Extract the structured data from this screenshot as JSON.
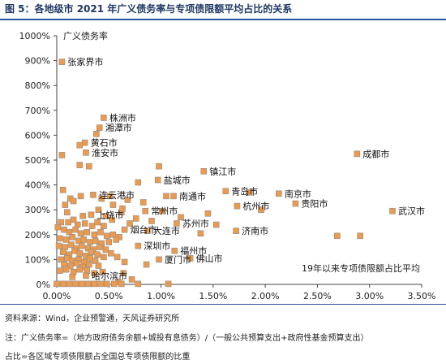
{
  "figure_title": "图 5：各地级市 2021 年广义债务率与专项债限额平均占比的关系",
  "notes": {
    "source": "资料来源：Wind，企业预警通，天风证券研究所",
    "note1": "注：广义债务率=（地方政府债务余额+城投有息债务）/（一般公共预算支出+政府性基金预算支出）",
    "note2": "占比=各区域专项债限额占全国总专项债限额的比重"
  },
  "colors": {
    "marker": "#ed9a4c",
    "marker_stroke": "#8c8c8c",
    "title": "#1f3864",
    "rule": "#2e5597",
    "axis": "#444444"
  },
  "chart_data": {
    "type": "scatter",
    "title": "",
    "ylabel": "广义债务率",
    "xlabel": "19年以来专项债限额占比平均",
    "xlim": [
      0,
      0.035
    ],
    "ylim": [
      0,
      10
    ],
    "x_ticks": [
      "0.00%",
      "0.50%",
      "1.00%",
      "1.50%",
      "2.00%",
      "2.50%",
      "3.00%",
      "3.50%"
    ],
    "y_ticks": [
      "0%",
      "100%",
      "200%",
      "300%",
      "400%",
      "500%",
      "600%",
      "700%",
      "800%",
      "900%",
      "1000%"
    ],
    "grid": false,
    "labeled_points": [
      {
        "name": "张家界市",
        "x": 0.0005,
        "y": 8.95
      },
      {
        "name": "株洲市",
        "x": 0.0045,
        "y": 6.7
      },
      {
        "name": "湘潭市",
        "x": 0.0041,
        "y": 6.3
      },
      {
        "name": "黄石市",
        "x": 0.0027,
        "y": 5.7
      },
      {
        "name": "淮安市",
        "x": 0.0028,
        "y": 5.3
      },
      {
        "name": "镇江市",
        "x": 0.0141,
        "y": 4.55
      },
      {
        "name": "成都市",
        "x": 0.0288,
        "y": 5.25
      },
      {
        "name": "盐城市",
        "x": 0.0097,
        "y": 4.2
      },
      {
        "name": "青岛市",
        "x": 0.0162,
        "y": 3.75
      },
      {
        "name": "南京市",
        "x": 0.0213,
        "y": 3.65
      },
      {
        "name": "连云港市",
        "x": 0.0035,
        "y": 3.6
      },
      {
        "name": "南通市",
        "x": 0.0112,
        "y": 3.55
      },
      {
        "name": "杭州市",
        "x": 0.0173,
        "y": 3.15
      },
      {
        "name": "贵阳市",
        "x": 0.0229,
        "y": 3.25
      },
      {
        "name": "武汉市",
        "x": 0.0322,
        "y": 2.95
      },
      {
        "name": "常州市",
        "x": 0.0085,
        "y": 2.95
      },
      {
        "name": "上饶市",
        "x": 0.0033,
        "y": 2.8
      },
      {
        "name": "苏州市",
        "x": 0.0115,
        "y": 2.45
      },
      {
        "name": "烟台市",
        "x": 0.0065,
        "y": 2.2
      },
      {
        "name": "大连市",
        "x": 0.0087,
        "y": 2.15
      },
      {
        "name": "济南市",
        "x": 0.0172,
        "y": 2.15
      },
      {
        "name": "深圳市",
        "x": 0.0078,
        "y": 1.55
      },
      {
        "name": "福州市",
        "x": 0.0113,
        "y": 1.35
      },
      {
        "name": "佛山市",
        "x": 0.0128,
        "y": 1.05
      },
      {
        "name": "厦门市",
        "x": 0.0098,
        "y": 1.0
      },
      {
        "name": "哈尔滨市",
        "x": 0.0028,
        "y": 0.35
      }
    ],
    "points": [
      [
        0.0005,
        8.95
      ],
      [
        0.0045,
        6.7
      ],
      [
        0.0041,
        6.3
      ],
      [
        0.0038,
        6.05
      ],
      [
        0.0027,
        5.7
      ],
      [
        0.0022,
        5.6
      ],
      [
        0.0028,
        5.3
      ],
      [
        0.0005,
        5.2
      ],
      [
        0.0022,
        4.8
      ],
      [
        0.0031,
        4.75
      ],
      [
        0.0098,
        4.75
      ],
      [
        0.0141,
        4.55
      ],
      [
        0.0288,
        5.25
      ],
      [
        0.0097,
        4.2
      ],
      [
        0.0078,
        4.1
      ],
      [
        0.0162,
        3.75
      ],
      [
        0.0213,
        3.65
      ],
      [
        0.0185,
        3.7
      ],
      [
        0.0035,
        3.6
      ],
      [
        0.0105,
        3.55
      ],
      [
        0.0112,
        3.55
      ],
      [
        0.0013,
        3.45
      ],
      [
        0.0023,
        3.55
      ],
      [
        0.0006,
        3.8
      ],
      [
        0.0008,
        3.2
      ],
      [
        0.0016,
        3.35
      ],
      [
        0.0043,
        3.45
      ],
      [
        0.0054,
        3.2
      ],
      [
        0.0068,
        3.4
      ],
      [
        0.0083,
        3.3
      ],
      [
        0.0173,
        3.15
      ],
      [
        0.0229,
        3.25
      ],
      [
        0.0196,
        3.0
      ],
      [
        0.0322,
        2.95
      ],
      [
        0.0085,
        2.95
      ],
      [
        0.0033,
        2.8
      ],
      [
        0.0047,
        2.75
      ],
      [
        0.0062,
        2.9
      ],
      [
        0.001,
        2.9
      ],
      [
        0.0025,
        2.75
      ],
      [
        0.0053,
        2.6
      ],
      [
        0.0076,
        2.65
      ],
      [
        0.0115,
        2.45
      ],
      [
        0.0153,
        2.4
      ],
      [
        0.0065,
        2.2
      ],
      [
        0.0087,
        2.15
      ],
      [
        0.0172,
        2.15
      ],
      [
        0.0138,
        2.05
      ],
      [
        0.0269,
        1.95
      ],
      [
        0.0011,
        2.5
      ],
      [
        0.0004,
        2.5
      ],
      [
        0.0016,
        2.6
      ],
      [
        0.002,
        2.4
      ],
      [
        0.0027,
        2.45
      ],
      [
        0.0034,
        2.35
      ],
      [
        0.0039,
        2.5
      ],
      [
        0.0045,
        2.35
      ],
      [
        0.0001,
        2.3
      ],
      [
        0.0007,
        2.2
      ],
      [
        0.0012,
        2.1
      ],
      [
        0.0018,
        2.2
      ],
      [
        0.0023,
        2.05
      ],
      [
        0.0029,
        2.1
      ],
      [
        0.0036,
        2.0
      ],
      [
        0.0042,
        2.1
      ],
      [
        0.0048,
        1.95
      ],
      [
        0.0054,
        2.0
      ],
      [
        0.006,
        1.9
      ],
      [
        0.0003,
        1.85
      ],
      [
        0.0009,
        1.8
      ],
      [
        0.0015,
        1.9
      ],
      [
        0.0021,
        1.75
      ],
      [
        0.0026,
        1.8
      ],
      [
        0.0032,
        1.7
      ],
      [
        0.0037,
        1.75
      ],
      [
        0.0043,
        1.65
      ],
      [
        0.005,
        1.7
      ],
      [
        0.0057,
        1.8
      ],
      [
        0.0002,
        1.55
      ],
      [
        0.0008,
        1.5
      ],
      [
        0.0014,
        1.6
      ],
      [
        0.0019,
        1.45
      ],
      [
        0.0024,
        1.55
      ],
      [
        0.003,
        1.45
      ],
      [
        0.0035,
        1.4
      ],
      [
        0.0041,
        1.5
      ],
      [
        0.0047,
        1.4
      ],
      [
        0.0078,
        1.55
      ],
      [
        0.0006,
        1.3
      ],
      [
        0.0012,
        1.2
      ],
      [
        0.0017,
        1.35
      ],
      [
        0.0022,
        1.25
      ],
      [
        0.0028,
        1.15
      ],
      [
        0.0033,
        1.3
      ],
      [
        0.0039,
        1.2
      ],
      [
        0.0045,
        1.1
      ],
      [
        0.0052,
        1.25
      ],
      [
        0.0113,
        1.35
      ],
      [
        0.0004,
        1.0
      ],
      [
        0.001,
        1.05
      ],
      [
        0.0015,
        0.95
      ],
      [
        0.0021,
        1.0
      ],
      [
        0.0026,
        0.9
      ],
      [
        0.0032,
        1.05
      ],
      [
        0.0037,
        0.95
      ],
      [
        0.0058,
        1.1
      ],
      [
        0.0128,
        1.05
      ],
      [
        0.0098,
        1.0
      ],
      [
        0.0007,
        0.8
      ],
      [
        0.0013,
        0.75
      ],
      [
        0.0019,
        0.85
      ],
      [
        0.0025,
        0.7
      ],
      [
        0.0031,
        0.8
      ],
      [
        0.004,
        0.75
      ],
      [
        0.0065,
        0.9
      ],
      [
        0.0086,
        0.8
      ],
      [
        0.0003,
        0.55
      ],
      [
        0.0009,
        0.6
      ],
      [
        0.0016,
        0.5
      ],
      [
        0.0022,
        0.6
      ],
      [
        0.0029,
        0.55
      ],
      [
        0.0036,
        0.45
      ],
      [
        0.0044,
        0.5
      ],
      [
        0.0064,
        0.45
      ],
      [
        0.0028,
        0.35
      ],
      [
        0.0015,
        0.3
      ],
      [
        0.0072,
        0.2
      ],
      [
        0.0059,
        0.1
      ],
      [
        0.0,
        0.02
      ],
      [
        0.0006,
        0.02
      ],
      [
        0.0012,
        0.02
      ],
      [
        0.0018,
        0.02
      ],
      [
        0.0024,
        0.02
      ],
      [
        0.003,
        0.02
      ],
      [
        0.0036,
        0.02
      ],
      [
        0.0042,
        0.02
      ],
      [
        0.0048,
        0.02
      ],
      [
        0.0055,
        0.02
      ],
      [
        0.0062,
        0.02
      ],
      [
        0.0078,
        0.02
      ],
      [
        0.0107,
        0.02
      ],
      [
        0.0291,
        1.95
      ],
      [
        0.0101,
        2.95
      ],
      [
        0.0119,
        2.7
      ],
      [
        0.0091,
        2.55
      ],
      [
        0.007,
        2.45
      ],
      [
        0.0145,
        2.85
      ],
      [
        0.0063,
        3.05
      ],
      [
        0.0051,
        3.55
      ],
      [
        0.004,
        3.0
      ]
    ]
  }
}
